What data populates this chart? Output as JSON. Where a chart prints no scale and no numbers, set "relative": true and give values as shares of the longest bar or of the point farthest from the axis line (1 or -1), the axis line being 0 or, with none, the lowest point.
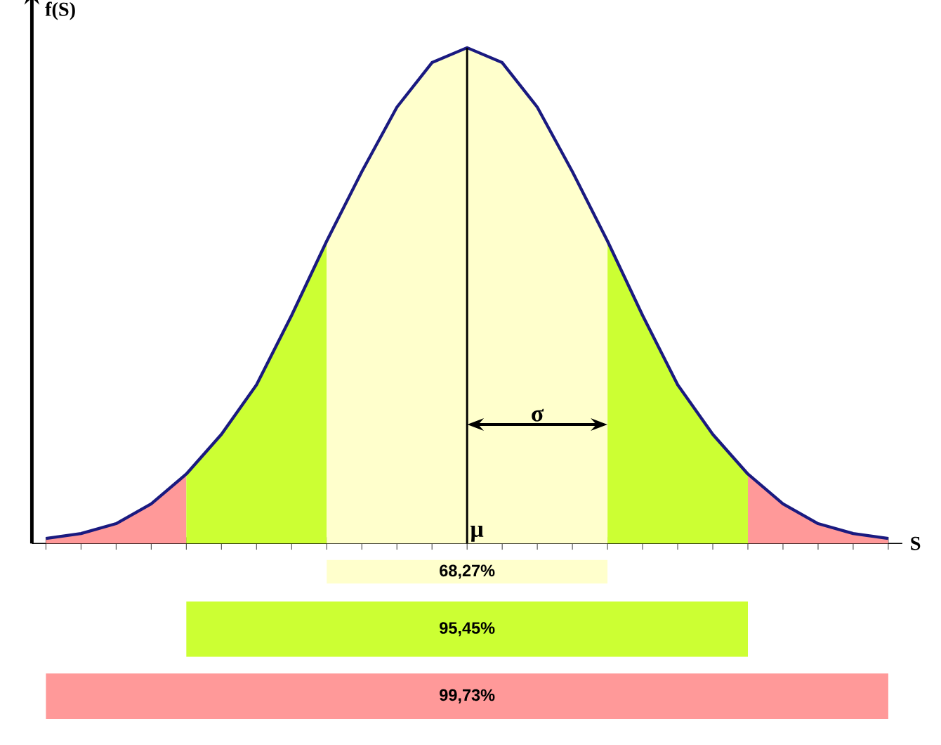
{
  "chart_data": {
    "type": "line",
    "relative": true,
    "xlabel": "S",
    "ylabel": "f(S)",
    "categories": [
      null,
      null,
      null,
      null,
      null,
      null,
      null,
      null,
      null,
      null,
      null,
      null,
      null,
      null,
      null,
      null,
      null,
      null,
      null,
      null,
      null,
      null,
      null,
      null,
      null
    ],
    "series": [
      {
        "type": "area",
        "color": "#ffffcc",
        "values": [
          null,
          null,
          null,
          null,
          null,
          null,
          null,
          null,
          0.61,
          0.75,
          0.88,
          0.97,
          1,
          0.97,
          0.88,
          0.75,
          0.61,
          null,
          null,
          null,
          null,
          null,
          null,
          null,
          null
        ]
      },
      {
        "type": "area",
        "color": "#ccff33",
        "values": [
          null,
          null,
          null,
          null,
          0.14,
          0.22,
          0.32,
          0.46,
          0.61,
          null,
          null,
          null,
          null,
          null,
          null,
          null,
          0.61,
          0.46,
          0.32,
          0.22,
          0.14,
          null,
          null,
          null,
          null
        ]
      },
      {
        "type": "area",
        "color": "#ff9999",
        "values": [
          0.01,
          0.02,
          0.04,
          0.08,
          0.14,
          null,
          null,
          null,
          null,
          null,
          null,
          null,
          null,
          null,
          null,
          null,
          null,
          null,
          null,
          null,
          0.14,
          0.08,
          0.04,
          0.02,
          0.01
        ]
      },
      {
        "color": "#1a1a80",
        "values": [
          0.01,
          0.02,
          0.04,
          0.08,
          0.14,
          0.22,
          0.32,
          0.46,
          0.61,
          0.75,
          0.88,
          0.97,
          1,
          0.97,
          0.88,
          0.75,
          0.61,
          0.46,
          0.32,
          0.22,
          0.14,
          0.08,
          0.04,
          0.02,
          0.01
        ]
      }
    ],
    "annotations": [
      "68,27%",
      "95,45%",
      "99,73%",
      "μ",
      "σ"
    ],
    "marker": "none",
    "line_style": "solid",
    "grid": false
  }
}
